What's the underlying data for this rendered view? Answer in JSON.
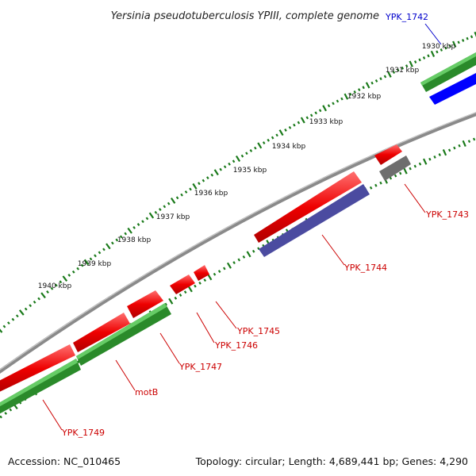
{
  "title": "Yersinia pseudotuberculosis YPIII, complete genome",
  "kbp_ticks": [
    "1930 kbp",
    "1931 kbp",
    "1932 kbp",
    "1933 kbp",
    "1934 kbp",
    "1935 kbp",
    "1936 kbp",
    "1937 kbp",
    "1938 kbp",
    "1939 kbp",
    "1940 kbp"
  ],
  "genes": [
    {
      "label": "YPK_1742",
      "color": "#0000cc"
    },
    {
      "label": "YPK_1743",
      "color": "#cc0000"
    },
    {
      "label": "YPK_1744",
      "color": "#cc0000"
    },
    {
      "label": "YPK_1745",
      "color": "#cc0000"
    },
    {
      "label": "YPK_1746",
      "color": "#cc0000"
    },
    {
      "label": "YPK_1747",
      "color": "#cc0000"
    },
    {
      "label": "motB",
      "color": "#cc0000"
    },
    {
      "label": "YPK_1749",
      "color": "#cc0000"
    }
  ],
  "colors": {
    "cds_red": "#ee0000",
    "gene_green": "#2a8a2a",
    "cds_blue": "#0000ff",
    "cds_purple": "#4b4ba0",
    "pseudo_gray": "#6e6e6e",
    "backbone": "#8a8a8a",
    "tick_green": "#1a7a1a"
  },
  "footer": {
    "accession": "Accession: NC_010465",
    "topology": "Topology: circular; Length: 4,689,441 bp; Genes: 4,290"
  }
}
